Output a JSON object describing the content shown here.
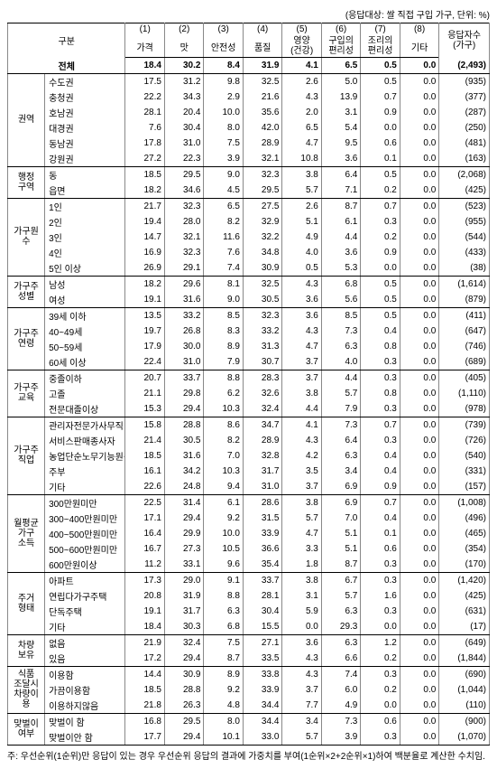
{
  "topnote": "(응답대상: 쌀 직접 구입 가구, 단위: %)",
  "headers": {
    "rowhead": "구분",
    "cols": [
      {
        "n": "(1)",
        "t": "가격"
      },
      {
        "n": "(2)",
        "t": "맛"
      },
      {
        "n": "(3)",
        "t": "안전성"
      },
      {
        "n": "(4)",
        "t": "품질"
      },
      {
        "n": "(5)",
        "t": "영양",
        "s": "(건강)"
      },
      {
        "n": "(6)",
        "t": "구입의",
        "s": "편리성"
      },
      {
        "n": "(7)",
        "t": "조리의",
        "s": "편리성"
      },
      {
        "n": "(8)",
        "t": "기타"
      }
    ],
    "resp": "응답자수",
    "resp2": "(가구)"
  },
  "total": {
    "label": "전체",
    "v": [
      "18.4",
      "30.2",
      "8.4",
      "31.9",
      "4.1",
      "6.5",
      "0.5",
      "0.0",
      "(2,493)"
    ]
  },
  "sections": [
    {
      "group": "권역",
      "rows": [
        {
          "l": "수도권",
          "v": [
            "17.5",
            "31.2",
            "9.8",
            "32.5",
            "2.6",
            "5.0",
            "0.5",
            "0.0",
            "(935)"
          ]
        },
        {
          "l": "충청권",
          "v": [
            "22.2",
            "34.3",
            "2.9",
            "21.6",
            "4.3",
            "13.9",
            "0.7",
            "0.0",
            "(377)"
          ]
        },
        {
          "l": "호남권",
          "v": [
            "28.1",
            "20.4",
            "10.0",
            "35.6",
            "2.0",
            "3.1",
            "0.9",
            "0.0",
            "(287)"
          ]
        },
        {
          "l": "대경권",
          "v": [
            "7.6",
            "30.4",
            "8.0",
            "42.0",
            "6.5",
            "5.4",
            "0.0",
            "0.0",
            "(250)"
          ]
        },
        {
          "l": "동남권",
          "v": [
            "17.8",
            "31.0",
            "7.5",
            "28.9",
            "4.7",
            "9.5",
            "0.6",
            "0.0",
            "(481)"
          ]
        },
        {
          "l": "강원권",
          "v": [
            "27.2",
            "22.3",
            "3.9",
            "32.1",
            "10.8",
            "3.6",
            "0.1",
            "0.0",
            "(163)"
          ]
        }
      ]
    },
    {
      "group": "행정\n구역",
      "rows": [
        {
          "l": "동",
          "v": [
            "18.5",
            "29.5",
            "9.0",
            "32.3",
            "3.8",
            "6.4",
            "0.5",
            "0.0",
            "(2,068)"
          ]
        },
        {
          "l": "읍면",
          "v": [
            "18.2",
            "34.6",
            "4.5",
            "29.5",
            "5.7",
            "7.1",
            "0.2",
            "0.0",
            "(425)"
          ]
        }
      ]
    },
    {
      "group": "가구원\n수",
      "rows": [
        {
          "l": "1인",
          "v": [
            "21.7",
            "32.3",
            "6.5",
            "27.5",
            "2.6",
            "8.7",
            "0.7",
            "0.0",
            "(523)"
          ]
        },
        {
          "l": "2인",
          "v": [
            "19.4",
            "28.0",
            "8.2",
            "32.9",
            "5.1",
            "6.1",
            "0.3",
            "0.0",
            "(955)"
          ]
        },
        {
          "l": "3인",
          "v": [
            "14.7",
            "32.1",
            "11.6",
            "32.2",
            "4.9",
            "4.4",
            "0.2",
            "0.0",
            "(544)"
          ]
        },
        {
          "l": "4인",
          "v": [
            "16.9",
            "32.3",
            "7.6",
            "34.8",
            "4.0",
            "3.6",
            "0.9",
            "0.0",
            "(433)"
          ]
        },
        {
          "l": "5인 이상",
          "v": [
            "26.9",
            "29.1",
            "7.4",
            "30.9",
            "0.5",
            "5.3",
            "0.0",
            "0.0",
            "(38)"
          ]
        }
      ]
    },
    {
      "group": "가구주\n성별",
      "rows": [
        {
          "l": "남성",
          "v": [
            "18.2",
            "29.6",
            "8.1",
            "32.5",
            "4.3",
            "6.8",
            "0.5",
            "0.0",
            "(1,614)"
          ]
        },
        {
          "l": "여성",
          "v": [
            "19.1",
            "31.6",
            "9.0",
            "30.5",
            "3.6",
            "5.6",
            "0.5",
            "0.0",
            "(879)"
          ]
        }
      ]
    },
    {
      "group": "가구주\n연령",
      "rows": [
        {
          "l": "39세 이하",
          "v": [
            "13.5",
            "33.2",
            "8.5",
            "32.3",
            "3.6",
            "8.5",
            "0.5",
            "0.0",
            "(411)"
          ]
        },
        {
          "l": "40~49세",
          "v": [
            "19.7",
            "26.8",
            "8.3",
            "33.2",
            "4.3",
            "7.3",
            "0.4",
            "0.0",
            "(647)"
          ]
        },
        {
          "l": "50~59세",
          "v": [
            "17.9",
            "30.0",
            "8.9",
            "31.3",
            "4.7",
            "6.3",
            "0.8",
            "0.0",
            "(746)"
          ]
        },
        {
          "l": "60세 이상",
          "v": [
            "22.4",
            "31.0",
            "7.9",
            "30.7",
            "3.7",
            "4.0",
            "0.3",
            "0.0",
            "(689)"
          ]
        }
      ]
    },
    {
      "group": "가구주\n교육",
      "rows": [
        {
          "l": "중졸이하",
          "v": [
            "20.7",
            "33.7",
            "8.8",
            "28.3",
            "3.7",
            "4.4",
            "0.3",
            "0.0",
            "(405)"
          ]
        },
        {
          "l": "고졸",
          "v": [
            "21.1",
            "29.8",
            "6.2",
            "32.6",
            "3.8",
            "5.7",
            "0.8",
            "0.0",
            "(1,110)"
          ]
        },
        {
          "l": "전문대졸이상",
          "v": [
            "15.3",
            "29.4",
            "10.3",
            "32.4",
            "4.4",
            "7.9",
            "0.3",
            "0.0",
            "(978)"
          ]
        }
      ]
    },
    {
      "group": "가구주\n직업",
      "rows": [
        {
          "l": "관리자전문가사무직",
          "v": [
            "15.8",
            "28.8",
            "8.6",
            "34.7",
            "4.1",
            "7.3",
            "0.7",
            "0.0",
            "(739)"
          ]
        },
        {
          "l": "서비스판매종사자",
          "v": [
            "21.4",
            "30.5",
            "8.2",
            "28.9",
            "4.3",
            "6.4",
            "0.3",
            "0.0",
            "(726)"
          ]
        },
        {
          "l": "농업단순노무기능원등",
          "v": [
            "18.5",
            "31.6",
            "7.0",
            "32.8",
            "4.2",
            "6.3",
            "0.4",
            "0.0",
            "(540)"
          ]
        },
        {
          "l": "주부",
          "v": [
            "16.1",
            "34.2",
            "10.3",
            "31.7",
            "3.5",
            "3.4",
            "0.4",
            "0.0",
            "(331)"
          ]
        },
        {
          "l": "기타",
          "v": [
            "22.6",
            "24.8",
            "9.4",
            "31.0",
            "3.7",
            "6.9",
            "0.9",
            "0.0",
            "(157)"
          ]
        }
      ]
    },
    {
      "group": "월평균\n가구\n소득",
      "rows": [
        {
          "l": "300만원미만",
          "v": [
            "22.5",
            "31.4",
            "6.1",
            "28.6",
            "3.8",
            "6.9",
            "0.7",
            "0.0",
            "(1,008)"
          ]
        },
        {
          "l": "300~400만원미만",
          "v": [
            "17.1",
            "29.4",
            "9.2",
            "31.5",
            "5.7",
            "7.0",
            "0.4",
            "0.0",
            "(496)"
          ]
        },
        {
          "l": "400~500만원미만",
          "v": [
            "16.4",
            "29.9",
            "10.0",
            "33.9",
            "4.7",
            "5.1",
            "0.1",
            "0.0",
            "(465)"
          ]
        },
        {
          "l": "500~600만원미만",
          "v": [
            "16.7",
            "27.3",
            "10.5",
            "36.6",
            "3.3",
            "5.1",
            "0.6",
            "0.0",
            "(354)"
          ]
        },
        {
          "l": "600만원이상",
          "v": [
            "11.2",
            "33.1",
            "9.6",
            "35.4",
            "1.8",
            "8.7",
            "0.3",
            "0.0",
            "(170)"
          ]
        }
      ]
    },
    {
      "group": "주거\n형태",
      "rows": [
        {
          "l": "아파트",
          "v": [
            "17.3",
            "29.0",
            "9.1",
            "33.7",
            "3.8",
            "6.7",
            "0.3",
            "0.0",
            "(1,420)"
          ]
        },
        {
          "l": "연립다가구주택",
          "v": [
            "20.8",
            "31.9",
            "8.8",
            "28.1",
            "3.1",
            "5.7",
            "1.6",
            "0.0",
            "(425)"
          ]
        },
        {
          "l": "단독주택",
          "v": [
            "19.1",
            "31.7",
            "6.3",
            "30.4",
            "5.9",
            "6.3",
            "0.3",
            "0.0",
            "(631)"
          ]
        },
        {
          "l": "기타",
          "v": [
            "18.4",
            "30.3",
            "6.8",
            "15.5",
            "0.0",
            "29.3",
            "0.0",
            "0.0",
            "(17)"
          ]
        }
      ]
    },
    {
      "group": "차량\n보유",
      "rows": [
        {
          "l": "없음",
          "v": [
            "21.9",
            "32.4",
            "7.5",
            "27.1",
            "3.6",
            "6.3",
            "1.2",
            "0.0",
            "(649)"
          ]
        },
        {
          "l": "있음",
          "v": [
            "17.2",
            "29.4",
            "8.7",
            "33.5",
            "4.3",
            "6.6",
            "0.2",
            "0.0",
            "(1,844)"
          ]
        }
      ]
    },
    {
      "group": "식품\n조달시\n차량이용",
      "rows": [
        {
          "l": "이용함",
          "v": [
            "14.4",
            "30.9",
            "8.9",
            "33.8",
            "4.3",
            "7.4",
            "0.3",
            "0.0",
            "(690)"
          ]
        },
        {
          "l": "가끔이용함",
          "v": [
            "18.5",
            "28.8",
            "9.2",
            "33.9",
            "3.7",
            "6.0",
            "0.2",
            "0.0",
            "(1,044)"
          ]
        },
        {
          "l": "이용하지않음",
          "v": [
            "21.8",
            "26.3",
            "4.8",
            "34.4",
            "7.7",
            "4.9",
            "0.0",
            "0.0",
            "(110)"
          ]
        }
      ]
    },
    {
      "group": "맞벌이\n여부",
      "rows": [
        {
          "l": "맞벌이 함",
          "v": [
            "16.8",
            "29.5",
            "8.0",
            "34.4",
            "3.4",
            "7.3",
            "0.6",
            "0.0",
            "(900)"
          ]
        },
        {
          "l": "맞벌이안 함",
          "v": [
            "17.7",
            "29.4",
            "10.1",
            "33.0",
            "5.7",
            "3.9",
            "0.3",
            "0.0",
            "(1,070)"
          ]
        }
      ]
    }
  ],
  "footnote": "주: 우선순위(1순위)만 응답이 있는 경우 우선순위 응답의 결과에 가중치를 부여(1순위×2+2순위×1)하여 백분율로 계산한 수치임."
}
